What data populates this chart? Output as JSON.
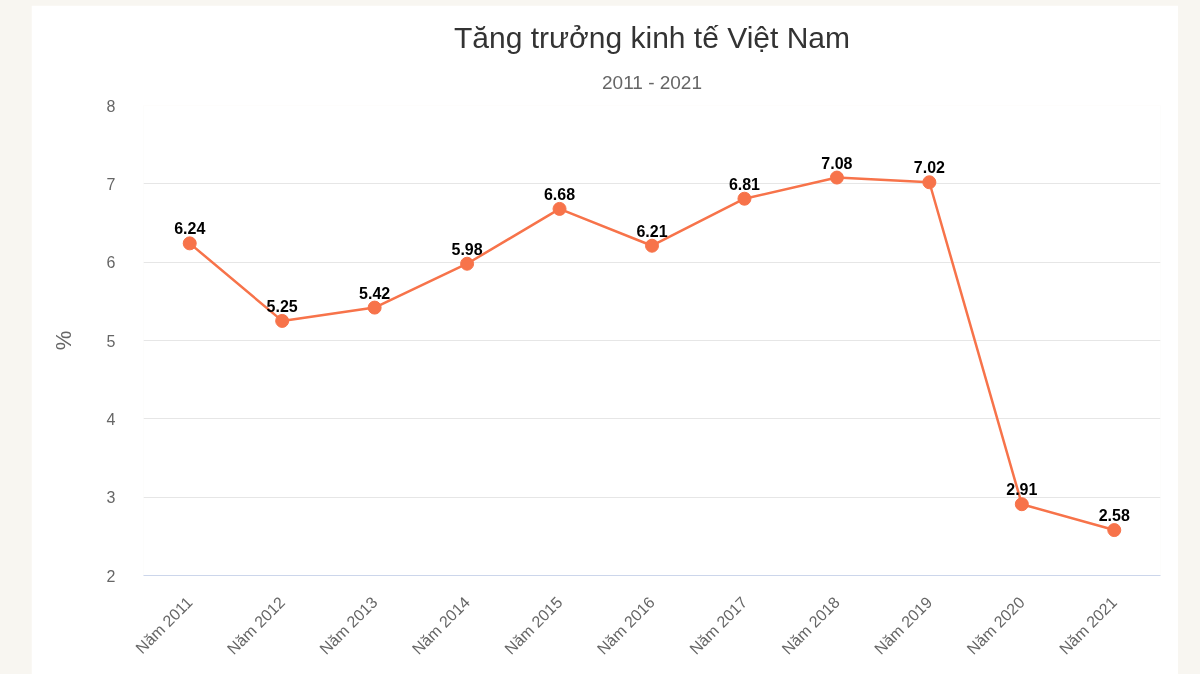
{
  "chart_data": {
    "type": "line",
    "title": "Tăng trưởng kinh tế Việt Nam",
    "subtitle": "2011 - 2021",
    "ylabel": "%",
    "categories": [
      "Năm 2011",
      "Năm 2012",
      "Năm 2013",
      "Năm 2014",
      "Năm 2015",
      "Năm 2016",
      "Năm 2017",
      "Năm 2018",
      "Năm 2019",
      "Năm 2020",
      "Năm 2021"
    ],
    "series": [
      {
        "color": "#f7734a",
        "values": [
          6.24,
          5.25,
          5.42,
          5.98,
          6.68,
          6.21,
          6.81,
          7.08,
          7.02,
          2.91,
          2.58
        ]
      }
    ],
    "ylim": [
      2,
      8
    ],
    "yticks": [
      2,
      3,
      4,
      5,
      6,
      7,
      8
    ],
    "grid": "y",
    "marker": "circle",
    "line_style": "solid",
    "data_labels": true
  }
}
